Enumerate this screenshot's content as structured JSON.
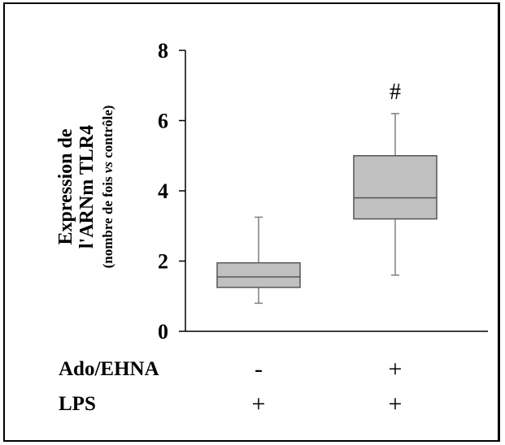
{
  "chart_data": {
    "type": "box",
    "ylabel_line1": "Expression de",
    "ylabel_line2": "l'ARNm TLR4",
    "ylabel_line3_pre": "(nombre de fois ",
    "ylabel_line3_em": "vs",
    "ylabel_line3_post": " contrôle)",
    "ylim": [
      0,
      8
    ],
    "yticks": [
      "0",
      "2",
      "4",
      "6",
      "8"
    ],
    "ytick_values": [
      0,
      2,
      4,
      6,
      8
    ],
    "box_color": "#c0c0c0",
    "boxes": [
      {
        "whisker_low": 0.8,
        "q1": 1.25,
        "median": 1.55,
        "q3": 1.95,
        "whisker_high": 3.25,
        "annotation": ""
      },
      {
        "whisker_low": 1.6,
        "q1": 3.2,
        "median": 3.8,
        "q3": 5.0,
        "whisker_high": 6.2,
        "annotation": "#"
      }
    ],
    "conditions": [
      {
        "name": "Ado/EHNA",
        "values": [
          "-",
          "+"
        ]
      },
      {
        "name": "LPS",
        "values": [
          "+",
          "+"
        ]
      }
    ]
  }
}
